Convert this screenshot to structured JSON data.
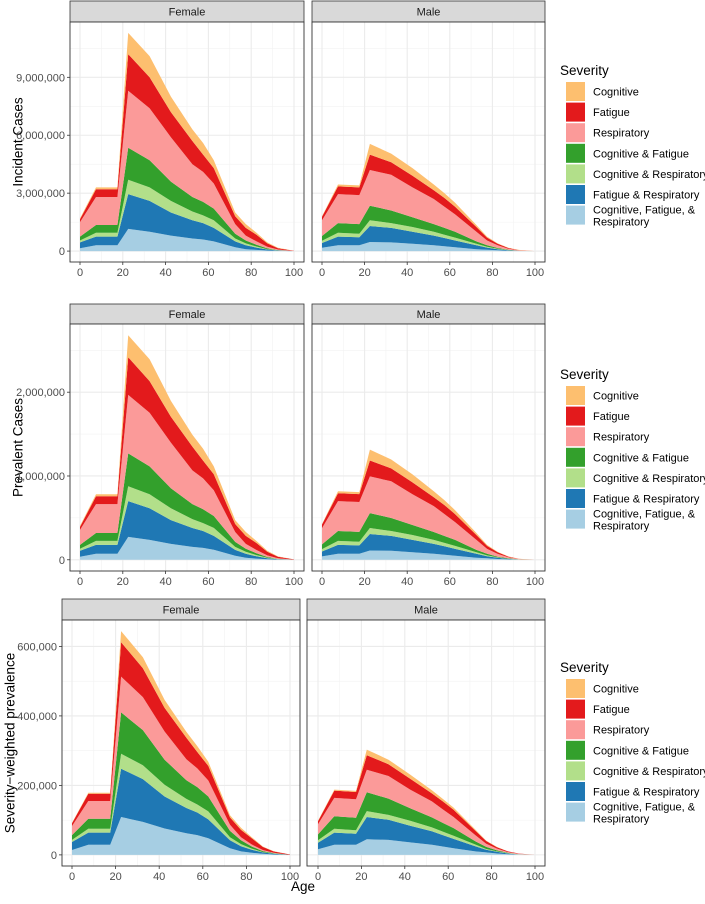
{
  "shared": {
    "x": [
      0,
      7.5,
      17.5,
      22.5,
      32.5,
      42.5,
      52.5,
      57.5,
      62.5,
      72.5,
      77.5,
      82.5,
      87.5,
      92.5,
      100
    ],
    "xticks": [
      0,
      20,
      40,
      60,
      80,
      100
    ],
    "xtick_labels": [
      "0",
      "20",
      "40",
      "60",
      "80",
      "100"
    ],
    "xlim": [
      -5,
      105
    ],
    "xlabel": "Age",
    "legend": {
      "title": "Severity",
      "entries": [
        {
          "key": "C",
          "label": "Cognitive",
          "color": "#fdbf6f"
        },
        {
          "key": "F",
          "label": "Fatigue",
          "color": "#e31a1c"
        },
        {
          "key": "R",
          "label": "Respiratory",
          "color": "#fb9a99"
        },
        {
          "key": "CF",
          "label": "Cognitive & Fatigue",
          "color": "#33a02c"
        },
        {
          "key": "CR",
          "label": "Cognitive & Respiratory",
          "color": "#b2df8a"
        },
        {
          "key": "FR",
          "label": "Fatigue & Respiratory",
          "color": "#1f78b4"
        },
        {
          "key": "CFR",
          "label_line1": "Cognitive, Fatigue, &",
          "label_line2": " Respiratory",
          "color": "#a6cee3"
        }
      ]
    }
  },
  "chart_data": [
    {
      "type": "area",
      "stacked": true,
      "ylabel": "Incident Cases",
      "ylim": [
        -565000,
        11865000
      ],
      "yticks": [
        0,
        3000000,
        6000000,
        9000000
      ],
      "ytick_labels": [
        "0",
        "3,000,000",
        "6,000,000",
        "9,000,000"
      ],
      "grid": true,
      "legend_position": "right",
      "panels": [
        {
          "strip": "Female",
          "series": {
            "C": [
              50000,
              100000,
              100000,
              1100000,
              1100000,
              800000,
              600000,
              600000,
              400000,
              200000,
              200000,
              100000,
              50000,
              20000,
              0
            ],
            "F": [
              150000,
              400000,
              400000,
              1900000,
              1600000,
              1300000,
              1200000,
              900000,
              800000,
              400000,
              400000,
              350000,
              180000,
              70000,
              10000
            ],
            "R": [
              750000,
              1450000,
              1450000,
              2950000,
              2700000,
              2300000,
              1700000,
              1550000,
              1300000,
              500000,
              250000,
              170000,
              80000,
              30000,
              10000
            ],
            "CF": [
              200000,
              400000,
              400000,
              1650000,
              1400000,
              1000000,
              750000,
              700000,
              600000,
              250000,
              150000,
              90000,
              40000,
              10000,
              0
            ],
            "CR": [
              100000,
              200000,
              200000,
              750000,
              700000,
              600000,
              450000,
              400000,
              400000,
              150000,
              100000,
              60000,
              20000,
              10000,
              0
            ],
            "FR": [
              300000,
              450000,
              450000,
              1800000,
              1600000,
              1200000,
              950000,
              850000,
              700000,
              300000,
              200000,
              120000,
              50000,
              20000,
              0
            ],
            "CFR": [
              150000,
              300000,
              300000,
              1150000,
              1000000,
              800000,
              650000,
              600000,
              500000,
              200000,
              100000,
              60000,
              30000,
              10000,
              0
            ]
          }
        },
        {
          "strip": "Male",
          "series": {
            "C": [
              20000,
              100000,
              100000,
              550000,
              450000,
              400000,
              300000,
              250000,
              200000,
              100000,
              50000,
              20000,
              10000,
              10000,
              0
            ],
            "F": [
              180000,
              400000,
              400000,
              800000,
              650000,
              600000,
              450000,
              450000,
              400000,
              250000,
              150000,
              80000,
              40000,
              10000,
              0
            ],
            "R": [
              820000,
              1500000,
              1500000,
              1850000,
              1850000,
              1550000,
              1300000,
              1100000,
              900000,
              500000,
              250000,
              140000,
              50000,
              20000,
              0
            ],
            "CF": [
              240000,
              500000,
              500000,
              750000,
              650000,
              500000,
              400000,
              350000,
              300000,
              120000,
              80000,
              40000,
              20000,
              0,
              0
            ],
            "CR": [
              120000,
              200000,
              180000,
              300000,
              250000,
              250000,
              200000,
              170000,
              150000,
              80000,
              40000,
              20000,
              10000,
              10000,
              0
            ],
            "FR": [
              250000,
              450000,
              420000,
              830000,
              750000,
              620000,
              500000,
              430000,
              350000,
              200000,
              110000,
              60000,
              20000,
              0,
              0
            ],
            "CFR": [
              170000,
              300000,
              300000,
              470000,
              450000,
              380000,
              300000,
              250000,
              200000,
              100000,
              70000,
              40000,
              20000,
              10000,
              0
            ]
          }
        }
      ]
    },
    {
      "type": "area",
      "stacked": true,
      "ylabel": "Prevalent Cases",
      "ylim": [
        -134000,
        2814000
      ],
      "yticks": [
        0,
        1000000,
        2000000
      ],
      "ytick_labels": [
        "0",
        "1,000,000",
        "2,000,000"
      ],
      "grid": true,
      "legend_position": "right",
      "panels": [
        {
          "strip": "Female",
          "series": {
            "C": [
              12000,
              24000,
              24000,
              261000,
              261000,
              190000,
              142000,
              142000,
              95000,
              47000,
              47000,
              24000,
              12000,
              5000,
              0
            ],
            "F": [
              36000,
              95000,
              95000,
              450000,
              379000,
              308000,
              284000,
              213000,
              190000,
              95000,
              95000,
              83000,
              43000,
              17000,
              2000
            ],
            "R": [
              178000,
              344000,
              344000,
              699000,
              640000,
              545000,
              403000,
              367000,
              308000,
              119000,
              59000,
              40000,
              19000,
              7000,
              2000
            ],
            "CF": [
              47000,
              95000,
              95000,
              391000,
              332000,
              237000,
              178000,
              166000,
              142000,
              59000,
              36000,
              21000,
              9000,
              2000,
              0
            ],
            "CR": [
              24000,
              47000,
              47000,
              178000,
              166000,
              142000,
              107000,
              95000,
              95000,
              36000,
              24000,
              14000,
              5000,
              2000,
              0
            ],
            "FR": [
              71000,
              107000,
              107000,
              427000,
              379000,
              284000,
              225000,
              201000,
              166000,
              71000,
              47000,
              28000,
              12000,
              5000,
              0
            ],
            "CFR": [
              36000,
              71000,
              71000,
              273000,
              237000,
              190000,
              154000,
              142000,
              119000,
              47000,
              24000,
              14000,
              7000,
              2000,
              0
            ]
          }
        },
        {
          "strip": "Male",
          "series": {
            "C": [
              5000,
              24000,
              24000,
              130000,
              107000,
              95000,
              71000,
              59000,
              47000,
              24000,
              12000,
              5000,
              2000,
              2000,
              0
            ],
            "F": [
              43000,
              95000,
              95000,
              190000,
              154000,
              142000,
              107000,
              107000,
              95000,
              59000,
              36000,
              19000,
              9000,
              2000,
              0
            ],
            "R": [
              194000,
              356000,
              356000,
              438000,
              438000,
              367000,
              308000,
              261000,
              213000,
              119000,
              59000,
              33000,
              12000,
              5000,
              0
            ],
            "CF": [
              57000,
              119000,
              119000,
              178000,
              154000,
              119000,
              95000,
              83000,
              71000,
              28000,
              19000,
              9000,
              5000,
              0,
              0
            ],
            "CR": [
              28000,
              47000,
              43000,
              71000,
              59000,
              59000,
              47000,
              40000,
              36000,
              19000,
              9000,
              5000,
              2000,
              2000,
              0
            ],
            "FR": [
              59000,
              107000,
              100000,
              197000,
              178000,
              147000,
              119000,
              102000,
              83000,
              47000,
              26000,
              14000,
              5000,
              0,
              0
            ],
            "CFR": [
              40000,
              71000,
              71000,
              111000,
              107000,
              90000,
              71000,
              59000,
              47000,
              24000,
              17000,
              9000,
              5000,
              2000,
              0
            ]
          }
        }
      ]
    },
    {
      "type": "area",
      "stacked": true,
      "ylabel": "Severity−weighted prevalence",
      "ylim": [
        -32000,
        676000
      ],
      "yticks": [
        0,
        200000,
        400000,
        600000
      ],
      "ytick_labels": [
        "0",
        "200,000",
        "400,000",
        "600,000"
      ],
      "grid": true,
      "legend_position": "right",
      "panels": [
        {
          "strip": "Female",
          "series": {
            "C": [
              1000,
              3000,
              3000,
              32000,
              32000,
              23000,
              17000,
              17000,
              12000,
              6000,
              6000,
              3000,
              1000,
              1000,
              0
            ],
            "F": [
              8000,
              21000,
              21000,
              99000,
              83000,
              68000,
              62000,
              47000,
              42000,
              21000,
              21000,
              18000,
              9000,
              4000,
              1000
            ],
            "R": [
              26000,
              51000,
              51000,
              103000,
              95000,
              81000,
              60000,
              54000,
              46000,
              18000,
              9000,
              6000,
              3000,
              1000,
              0
            ],
            "CF": [
              14000,
              29000,
              29000,
              119000,
              101000,
              72000,
              54000,
              50000,
              43000,
              18000,
              11000,
              6000,
              3000,
              1000,
              0
            ],
            "CR": [
              6000,
              11000,
              11000,
              43000,
              40000,
              34000,
              26000,
              23000,
              23000,
              9000,
              6000,
              3000,
              1000,
              1000,
              0
            ],
            "FR": [
              23000,
              35000,
              35000,
              139000,
              123000,
              92000,
              73000,
              65000,
              54000,
              23000,
              15000,
              9000,
              4000,
              2000,
              0
            ],
            "CFR": [
              14000,
              29000,
              29000,
              109000,
              95000,
              76000,
              62000,
              57000,
              48000,
              19000,
              10000,
              6000,
              3000,
              1000,
              0
            ]
          }
        },
        {
          "strip": "Male",
          "series": {
            "C": [
              1000,
              3000,
              3000,
              16000,
              13000,
              12000,
              9000,
              7000,
              6000,
              3000,
              1000,
              1000,
              0,
              0,
              0
            ],
            "F": [
              9000,
              21000,
              21000,
              42000,
              34000,
              31000,
              23000,
              23000,
              21000,
              13000,
              8000,
              4000,
              2000,
              1000,
              0
            ],
            "R": [
              29000,
              53000,
              53000,
              65000,
              65000,
              54000,
              46000,
              39000,
              32000,
              18000,
              9000,
              5000,
              2000,
              1000,
              0
            ],
            "CF": [
              17000,
              36000,
              36000,
              54000,
              47000,
              36000,
              29000,
              25000,
              22000,
              9000,
              6000,
              3000,
              1000,
              0,
              0
            ],
            "CR": [
              7000,
              11000,
              10000,
              17000,
              14000,
              14000,
              11000,
              10000,
              9000,
              5000,
              2000,
              1000,
              1000,
              1000,
              0
            ],
            "FR": [
              19000,
              35000,
              32000,
              64000,
              58000,
              48000,
              39000,
              33000,
              27000,
              15000,
              8000,
              5000,
              2000,
              0,
              0
            ],
            "CFR": [
              16000,
              29000,
              29000,
              45000,
              43000,
              36000,
              29000,
              24000,
              19000,
              10000,
              7000,
              4000,
              2000,
              1000,
              0
            ]
          }
        }
      ]
    }
  ]
}
